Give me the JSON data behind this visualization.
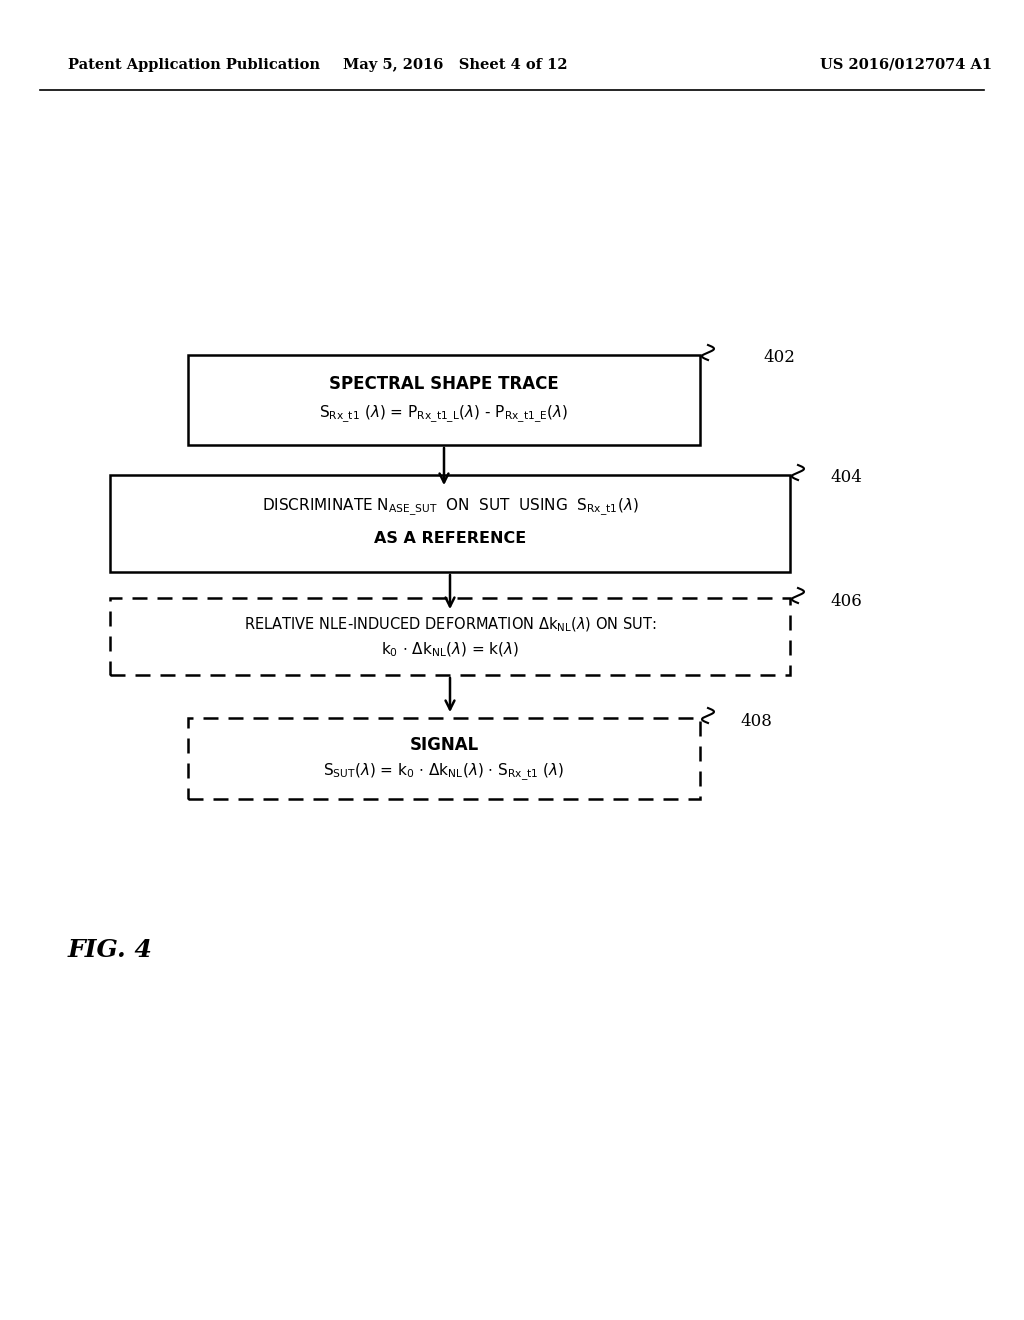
{
  "bg_color": "#ffffff",
  "header_left": "Patent Application Publication",
  "header_mid": "May 5, 2016   Sheet 4 of 12",
  "header_right": "US 2016/0127074 A1",
  "fig_label": "FIG. 4",
  "box402_label": "402",
  "box404_label": "404",
  "box406_label": "406",
  "box408_label": "408",
  "box402_title": "SPECTRAL SHAPE TRACE",
  "box404_line2": "AS A REFERENCE",
  "box408_title": "SIGNAL"
}
